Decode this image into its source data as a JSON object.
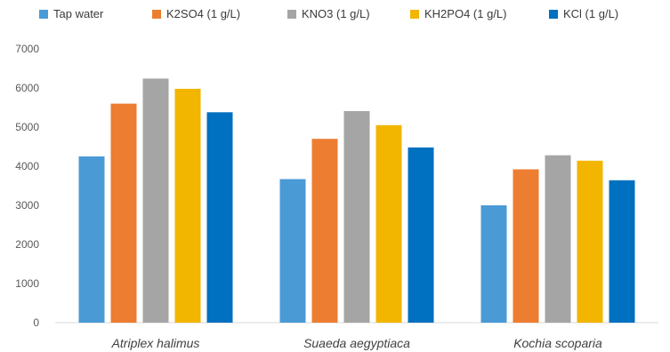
{
  "chart_data": {
    "type": "bar",
    "categories": [
      "Atriplex halimus",
      "Suaeda aegyptiaca",
      "Kochia scoparia"
    ],
    "series": [
      {
        "name": "Tap water",
        "color": "#4a9ad6",
        "values": [
          4250,
          3670,
          3000
        ]
      },
      {
        "name": "K2SO4  (1 g/L)",
        "color": "#ed7d31",
        "values": [
          5600,
          4700,
          3920
        ]
      },
      {
        "name": "KNO3  (1 g/L)",
        "color": "#a5a5a5",
        "values": [
          6240,
          5410,
          4280
        ]
      },
      {
        "name": "KH2PO4  (1 g/L)",
        "color": "#f2b500",
        "values": [
          5980,
          5050,
          4140
        ]
      },
      {
        "name": "KCl   (1 g/L)",
        "color": "#0070c0",
        "values": [
          5380,
          4480,
          3640
        ]
      }
    ],
    "ylim": [
      0,
      7000
    ],
    "yticks": [
      "0",
      "1000",
      "2000",
      "3000",
      "4000",
      "5000",
      "6000",
      "7000"
    ],
    "grid": false,
    "legend": "top"
  }
}
